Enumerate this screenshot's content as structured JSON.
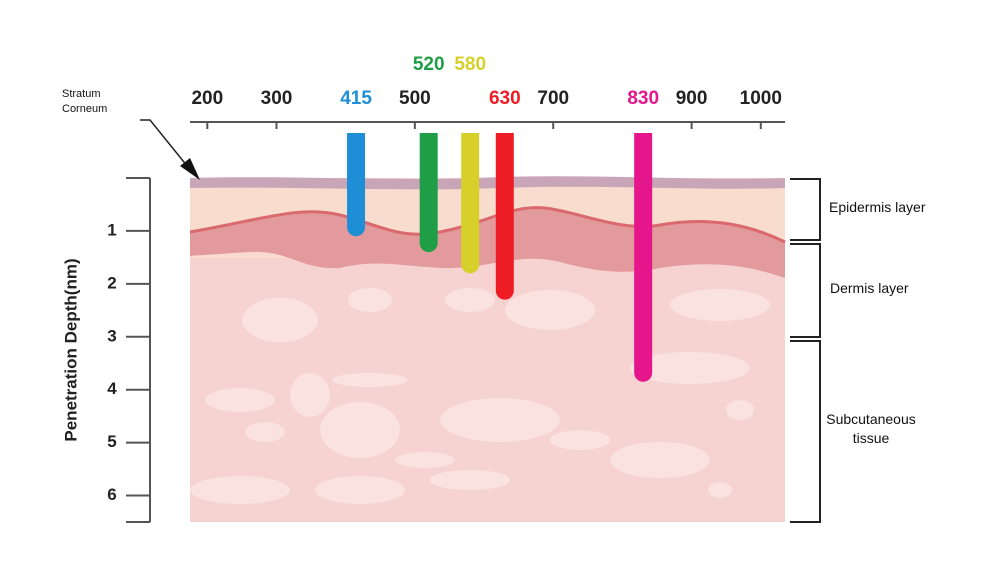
{
  "chart_data": {
    "type": "bar",
    "y_label": "Penetration Depth(nm)",
    "x": [
      415,
      520,
      580,
      630,
      830
    ],
    "values": [
      1.1,
      1.4,
      1.8,
      2.3,
      3.85
    ],
    "colors": [
      "#1e8fd6",
      "#1f9e47",
      "#d8d02a",
      "#ee1c25",
      "#e5158c"
    ],
    "xlim": [
      175,
      1035
    ],
    "xticks": [
      200,
      300,
      500,
      700,
      900,
      1000
    ],
    "ylim": [
      0,
      6.5
    ],
    "yticks": [
      1,
      2,
      3,
      4,
      5,
      6
    ],
    "annotations": {
      "stratum": "Stratum Corneum",
      "epidermis": "Epidermis layer",
      "dermis": "Dermis layer",
      "subcutaneous": "Subcutaneous tissue"
    }
  }
}
